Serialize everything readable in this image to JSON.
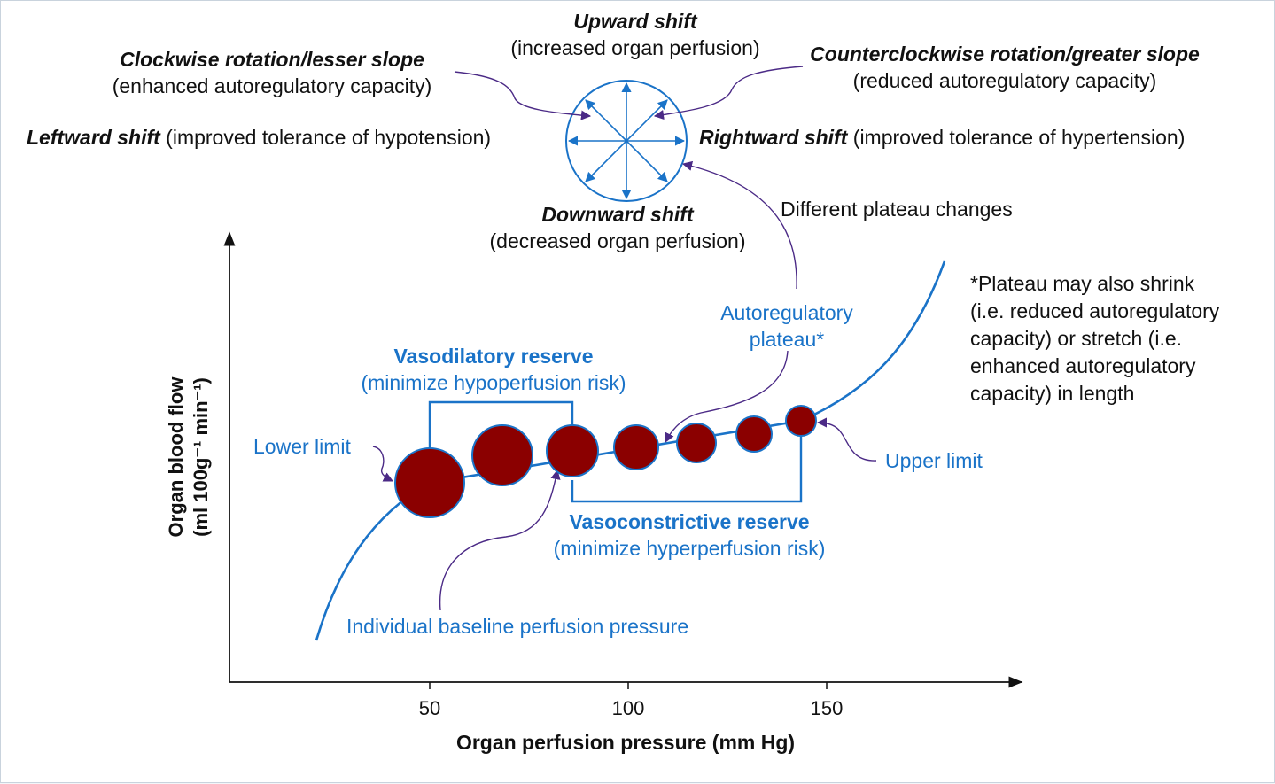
{
  "shifts": {
    "upward": {
      "title": "Upward shift",
      "desc": "(increased organ perfusion)"
    },
    "downward": {
      "title": "Downward shift",
      "desc": "(decreased organ perfusion)"
    },
    "clockwise": {
      "title": "Clockwise rotation/lesser slope",
      "desc": "(enhanced autoregulatory capacity)"
    },
    "counterclockwise": {
      "title": "Counterclockwise rotation/greater slope",
      "desc": "(reduced autoregulatory capacity)"
    },
    "leftward": {
      "title": "Leftward shift",
      "desc": "(improved tolerance of hypotension)"
    },
    "rightward": {
      "title": "Rightward shift",
      "desc": "(improved tolerance of hypertension)"
    }
  },
  "plateau_changes": "Different plateau changes",
  "plateau": {
    "line1": "Autoregulatory",
    "line2": "plateau*"
  },
  "note": {
    "lines": [
      "*Plateau may also shrink",
      "(i.e. reduced autoregulatory",
      "capacity) or stretch (i.e.",
      "enhanced autoregulatory",
      "capacity) in length"
    ]
  },
  "vasodilatory": {
    "title": "Vasodilatory reserve",
    "desc": "(minimize hypoperfusion risk)"
  },
  "vasoconstrictive": {
    "title": "Vasoconstrictive reserve",
    "desc": "(minimize hyperperfusion risk)"
  },
  "lower_limit": "Lower limit",
  "upper_limit": "Upper limit",
  "baseline": "Individual baseline perfusion pressure",
  "axes": {
    "xlabel": "Organ perfusion pressure (mm Hg)",
    "ylabel_line1": "Organ blood flow",
    "ylabel_line2": "(ml 100g⁻¹ min⁻¹)",
    "xticks": [
      "50",
      "100",
      "150"
    ]
  },
  "colors": {
    "curve": "#1a73c8",
    "circle_fill": "#8b0000",
    "text": "#111111",
    "callout_arrow": "#4b2a86"
  }
}
